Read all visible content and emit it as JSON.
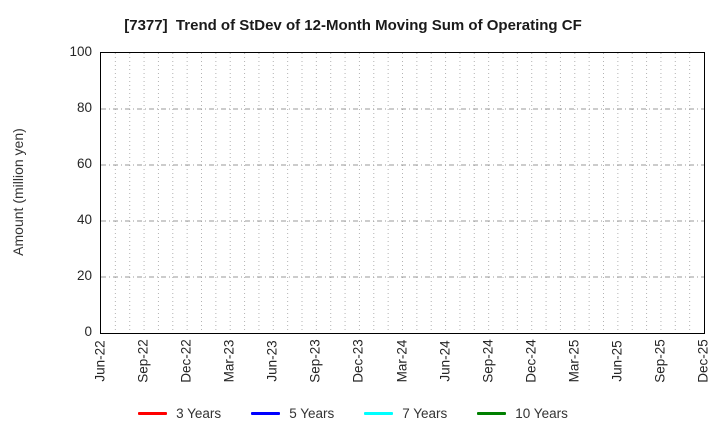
{
  "title": "[7377]  Trend of StDev of 12-Month Moving Sum of Operating CF",
  "chart_data": {
    "type": "line",
    "title": "[7377]  Trend of StDev of 12-Month Moving Sum of Operating CF",
    "xlabel": "",
    "ylabel": "Amount (million yen)",
    "ylim": [
      0,
      100
    ],
    "yticks": [
      0,
      20,
      40,
      60,
      80,
      100
    ],
    "x_categories": [
      "Jun-22",
      "Sep-22",
      "Dec-22",
      "Mar-23",
      "Jun-23",
      "Sep-23",
      "Dec-23",
      "Mar-24",
      "Jun-24",
      "Sep-24",
      "Dec-24",
      "Mar-25",
      "Jun-25",
      "Sep-25",
      "Dec-25"
    ],
    "minor_vertical_gridlines_per_interval": 3,
    "grid": true,
    "legend_position": "bottom",
    "series": [
      {
        "name": "3 Years",
        "color": "#ff0000",
        "values": []
      },
      {
        "name": "5 Years",
        "color": "#0000ff",
        "values": []
      },
      {
        "name": "7 Years",
        "color": "#00ffff",
        "values": []
      },
      {
        "name": "10 Years",
        "color": "#008000",
        "values": []
      }
    ]
  },
  "colors": {
    "grid_vertical": "#b3b3b3",
    "grid_horizontal": "#999999",
    "axis_frame": "#000000",
    "text": "#262626"
  }
}
